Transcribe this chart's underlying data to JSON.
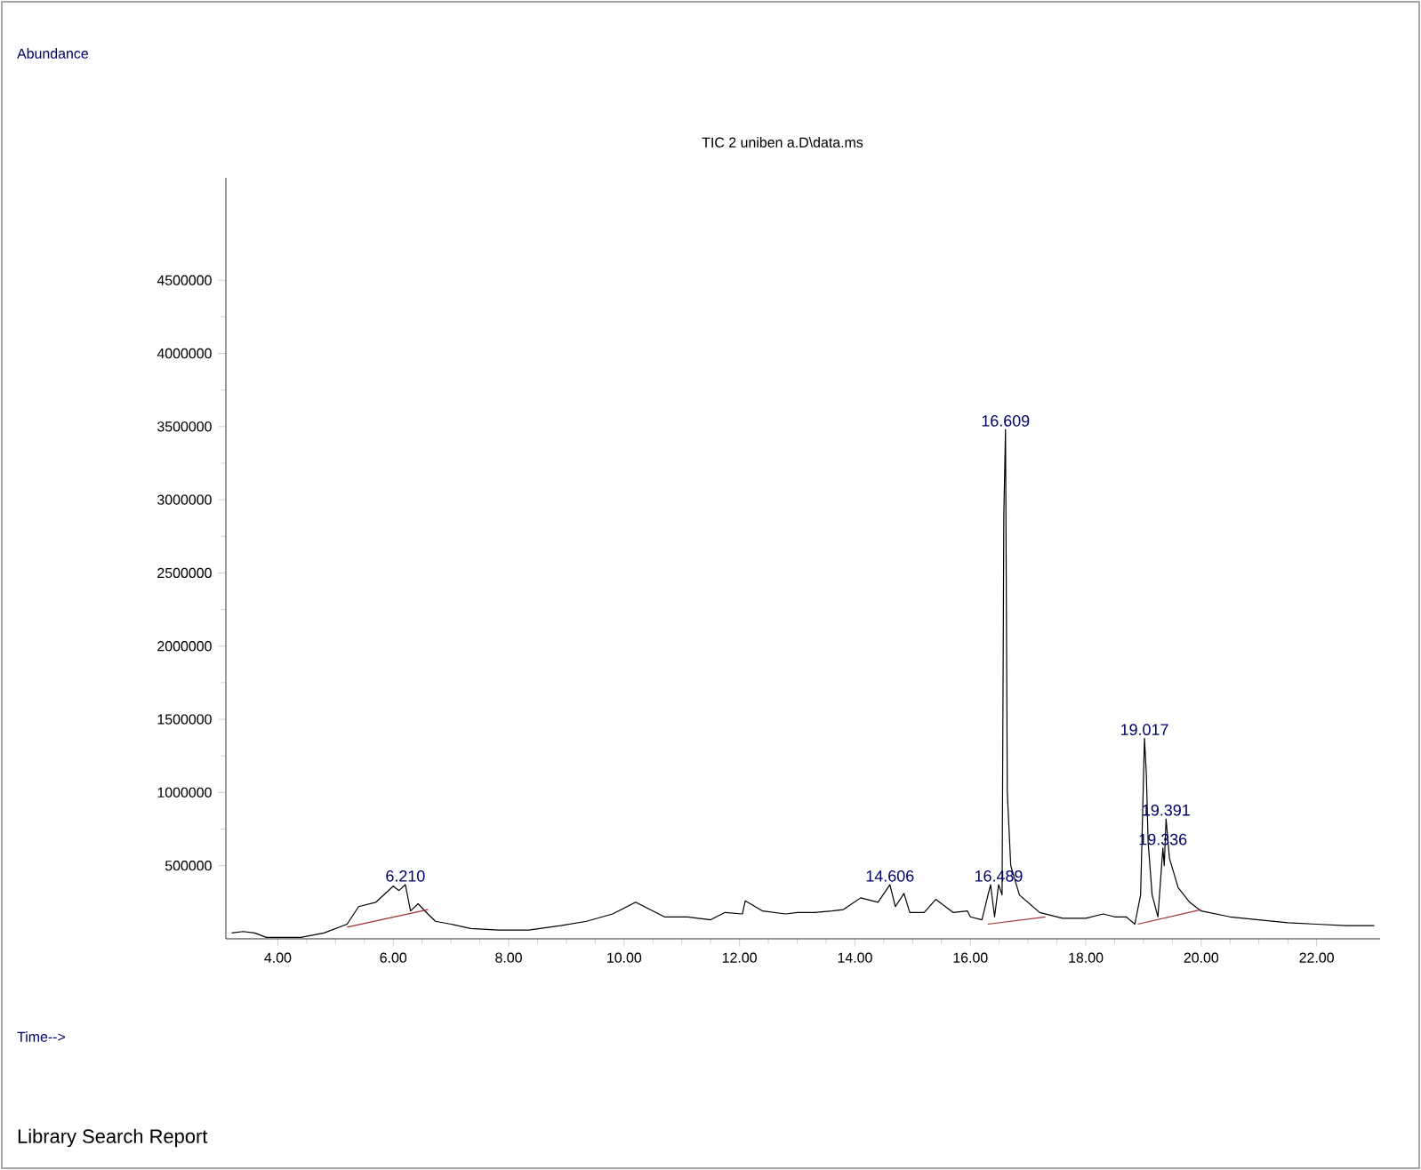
{
  "chart_data": {
    "type": "line",
    "title": "TIC 2 uniben a.D\\data.ms",
    "xlim": [
      3.1,
      23.1
    ],
    "ylim": [
      0,
      5200000
    ],
    "xticks": [
      {
        "value": 4,
        "label": "4.00"
      },
      {
        "value": 6,
        "label": "6.00"
      },
      {
        "value": 8,
        "label": "8.00"
      },
      {
        "value": 10,
        "label": "10.00"
      },
      {
        "value": 12,
        "label": "12.00"
      },
      {
        "value": 14,
        "label": "14.00"
      },
      {
        "value": 16,
        "label": "16.00"
      },
      {
        "value": 18,
        "label": "18.00"
      },
      {
        "value": 20,
        "label": "20.00"
      },
      {
        "value": 22,
        "label": "22.00"
      }
    ],
    "yticks": [
      500000,
      1000000,
      1500000,
      2000000,
      2500000,
      3000000,
      3500000,
      4000000,
      4500000
    ],
    "marker": "none",
    "line_style": "solid",
    "series": [
      {
        "color": "#000000",
        "x": [
          3.2,
          3.4,
          3.6,
          3.8,
          4.1,
          4.4,
          4.8,
          5.2,
          5.4,
          5.7,
          6.0,
          6.1,
          6.21,
          6.3,
          6.43,
          6.6,
          6.73,
          7.0,
          7.34,
          7.83,
          8.35,
          8.9,
          9.35,
          9.8,
          10.2,
          10.7,
          11.1,
          11.5,
          11.75,
          12.05,
          12.1,
          12.4,
          12.8,
          13.0,
          13.3,
          13.6,
          13.8,
          14.1,
          14.4,
          14.606,
          14.7,
          14.85,
          14.95,
          15.2,
          15.4,
          15.7,
          15.95,
          16.0,
          16.2,
          16.35,
          16.42,
          16.489,
          16.55,
          16.58,
          16.609,
          16.64,
          16.7,
          16.85,
          17.2,
          17.6,
          18.0,
          18.3,
          18.5,
          18.7,
          18.85,
          18.95,
          19.017,
          19.05,
          19.08,
          19.15,
          19.25,
          19.336,
          19.36,
          19.391,
          19.45,
          19.6,
          19.8,
          20.0,
          20.5,
          21.0,
          21.5,
          22.0,
          22.5,
          23.0
        ],
        "values": [
          40000,
          50000,
          40000,
          10000,
          10000,
          10000,
          40000,
          100000,
          220000,
          250000,
          360000,
          330000,
          370000,
          190000,
          240000,
          170000,
          120000,
          100000,
          70000,
          60000,
          60000,
          90000,
          120000,
          170000,
          250000,
          150000,
          150000,
          130000,
          180000,
          170000,
          260000,
          190000,
          170000,
          180000,
          180000,
          190000,
          200000,
          280000,
          250000,
          370000,
          220000,
          310000,
          180000,
          180000,
          270000,
          180000,
          190000,
          150000,
          130000,
          370000,
          150000,
          370000,
          300000,
          2900000,
          3480000,
          1000000,
          500000,
          300000,
          180000,
          140000,
          140000,
          170000,
          150000,
          150000,
          100000,
          300000,
          1370000,
          1120000,
          660000,
          300000,
          150000,
          620000,
          500000,
          820000,
          550000,
          350000,
          250000,
          190000,
          150000,
          130000,
          110000,
          100000,
          90000,
          90000
        ]
      },
      {
        "color": "#a03030",
        "x": [
          5.2,
          6.6,
          null,
          16.3,
          17.3,
          null,
          18.9,
          20.0
        ],
        "values": [
          80000,
          200000,
          null,
          100000,
          150000,
          null,
          100000,
          200000
        ]
      }
    ],
    "annotations": [
      {
        "text": "6.210",
        "x": 6.21,
        "y": 370000
      },
      {
        "text": "14.606",
        "x": 14.606,
        "y": 370000
      },
      {
        "text": "16.489",
        "x": 16.489,
        "y": 370000
      },
      {
        "text": "16.609",
        "x": 16.609,
        "y": 3480000
      },
      {
        "text": "19.017",
        "x": 19.017,
        "y": 1370000
      },
      {
        "text": "19.391",
        "x": 19.391,
        "y": 820000
      },
      {
        "text": "19.336",
        "x": 19.336,
        "y": 620000
      },
      "Abundance",
      "Time-->",
      "Library Search Report"
    ]
  }
}
